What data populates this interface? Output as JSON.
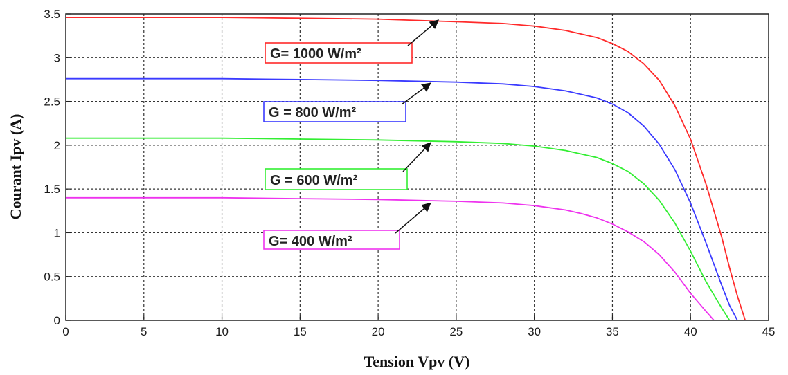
{
  "chart_data": {
    "type": "line",
    "xlabel": "Tension Vpv (V)",
    "ylabel": "Courant Ipv (A)",
    "xlim": [
      0,
      45
    ],
    "ylim": [
      0,
      3.5
    ],
    "xticks": [
      "0",
      "5",
      "10",
      "15",
      "20",
      "25",
      "30",
      "35",
      "40",
      "45"
    ],
    "yticks": [
      "0",
      "0.5",
      "1",
      "1.5",
      "2",
      "2.5",
      "3",
      "3.5"
    ],
    "grid": true,
    "series": [
      {
        "name": "G= 1000 W/m²",
        "color": "#ff2a2a",
        "x": [
          0,
          5,
          10,
          15,
          20,
          25,
          28,
          30,
          32,
          34,
          35,
          36,
          37,
          38,
          39,
          40,
          41,
          42,
          42.5,
          43,
          43.5
        ],
        "y": [
          3.46,
          3.46,
          3.46,
          3.45,
          3.44,
          3.41,
          3.39,
          3.36,
          3.31,
          3.23,
          3.16,
          3.07,
          2.93,
          2.74,
          2.45,
          2.07,
          1.55,
          0.95,
          0.6,
          0.28,
          0.0
        ]
      },
      {
        "name": "G = 800 W/m²",
        "color": "#3a3aff",
        "x": [
          0,
          5,
          10,
          15,
          20,
          25,
          28,
          30,
          32,
          34,
          35,
          36,
          37,
          38,
          39,
          40,
          41,
          42,
          42.5,
          43
        ],
        "y": [
          2.76,
          2.76,
          2.76,
          2.75,
          2.74,
          2.72,
          2.7,
          2.67,
          2.62,
          2.54,
          2.47,
          2.37,
          2.22,
          2.01,
          1.72,
          1.34,
          0.88,
          0.4,
          0.17,
          0.0
        ]
      },
      {
        "name": "G = 600 W/m²",
        "color": "#33ee33",
        "x": [
          0,
          5,
          10,
          15,
          20,
          25,
          28,
          30,
          32,
          34,
          35,
          36,
          37,
          38,
          39,
          40,
          41,
          42,
          42.5
        ],
        "y": [
          2.08,
          2.08,
          2.08,
          2.07,
          2.06,
          2.04,
          2.02,
          1.99,
          1.94,
          1.86,
          1.79,
          1.7,
          1.56,
          1.37,
          1.11,
          0.79,
          0.44,
          0.14,
          0.0
        ]
      },
      {
        "name": "G= 400 W/m²",
        "color": "#ee33ee",
        "x": [
          0,
          5,
          10,
          15,
          20,
          25,
          28,
          30,
          32,
          33,
          34,
          35,
          36,
          37,
          38,
          39,
          40,
          41,
          41.5
        ],
        "y": [
          1.4,
          1.4,
          1.4,
          1.39,
          1.38,
          1.36,
          1.34,
          1.31,
          1.26,
          1.22,
          1.17,
          1.1,
          1.01,
          0.9,
          0.75,
          0.55,
          0.31,
          0.1,
          0.0
        ]
      }
    ],
    "annotations": [
      {
        "text": "G= 1000 W/m²",
        "series": 0,
        "arrow_to": [
          23.5,
          3.46
        ]
      },
      {
        "text": "G = 800 W/m²",
        "series": 1,
        "arrow_to": [
          23.0,
          2.74
        ]
      },
      {
        "text": "G = 600 W/m²",
        "series": 2,
        "arrow_to": [
          23.0,
          2.06
        ]
      },
      {
        "text": "G= 400 W/m²",
        "series": 3,
        "arrow_to": [
          23.0,
          1.37
        ]
      }
    ]
  }
}
